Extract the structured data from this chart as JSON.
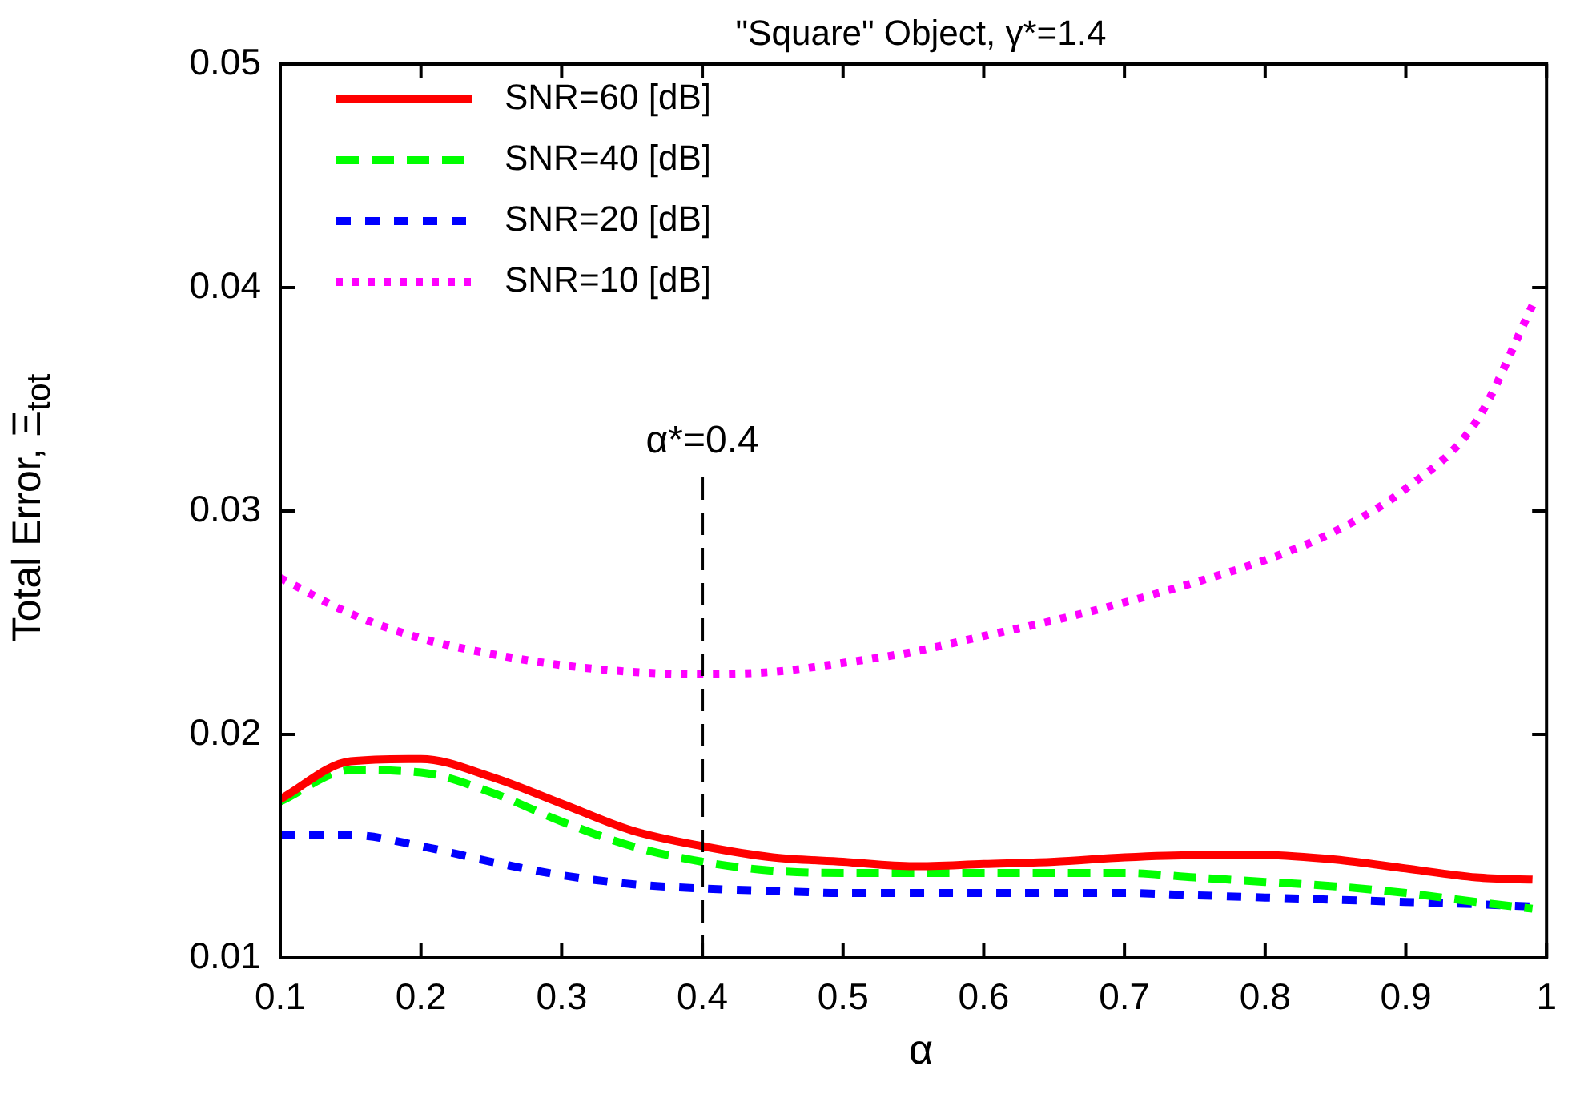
{
  "chart_data": {
    "type": "line",
    "title": "\"Square\" Object, γ*=1.4",
    "xlabel": "α",
    "ylabel": "Total Error, Ξ$_{tot}$",
    "x": [
      0.1,
      0.15,
      0.2,
      0.25,
      0.3,
      0.35,
      0.4,
      0.45,
      0.5,
      0.55,
      0.6,
      0.65,
      0.7,
      0.75,
      0.8,
      0.85,
      0.9,
      0.95,
      0.99
    ],
    "series": [
      {
        "name": "SNR=60 [dB]",
        "color": "#ff0000",
        "line_style": "solid",
        "values": [
          0.0171,
          0.0188,
          0.0189,
          0.0181,
          0.0169,
          0.0157,
          0.015,
          0.0145,
          0.0143,
          0.0141,
          0.0142,
          0.0143,
          0.0145,
          0.0146,
          0.0146,
          0.0144,
          0.014,
          0.0136,
          0.0135
        ]
      },
      {
        "name": "SNR=40 [dB]",
        "color": "#00ff00",
        "line_style": "dashed",
        "values": [
          0.017,
          0.0184,
          0.0183,
          0.0174,
          0.0161,
          0.015,
          0.0143,
          0.0139,
          0.0138,
          0.0138,
          0.0138,
          0.0138,
          0.0138,
          0.0136,
          0.0134,
          0.0132,
          0.0129,
          0.0125,
          0.0122
        ]
      },
      {
        "name": "SNR=20 [dB]",
        "color": "#0000ff",
        "line_style": "dashed",
        "values": [
          0.0155,
          0.0155,
          0.015,
          0.0143,
          0.0137,
          0.0133,
          0.0131,
          0.013,
          0.0129,
          0.0129,
          0.0129,
          0.0129,
          0.0129,
          0.0128,
          0.0127,
          0.0126,
          0.0125,
          0.0124,
          0.0123
        ]
      },
      {
        "name": "SNR=10 [dB]",
        "color": "#ff00ff",
        "line_style": "dotted",
        "values": [
          0.027,
          0.0254,
          0.0243,
          0.0236,
          0.0231,
          0.0228,
          0.0227,
          0.0228,
          0.0232,
          0.0237,
          0.0244,
          0.0251,
          0.0259,
          0.0268,
          0.0278,
          0.0291,
          0.031,
          0.034,
          0.0392
        ]
      }
    ],
    "xlim": [
      0.1,
      1
    ],
    "xticks": [
      0.1,
      0.2,
      0.3,
      0.4,
      0.5,
      0.6,
      0.7,
      0.8,
      0.9,
      1
    ],
    "ylim": [
      0.01,
      0.05
    ],
    "yticks": [
      0.01,
      0.02,
      0.03,
      0.04,
      0.05
    ],
    "ref_lines": [
      {
        "axis": "x",
        "value": 0.4,
        "label": "α*=0.4",
        "color": "#000000",
        "line_style": "dashed"
      }
    ],
    "grid": false,
    "legend": "top left",
    "marker": "none"
  }
}
